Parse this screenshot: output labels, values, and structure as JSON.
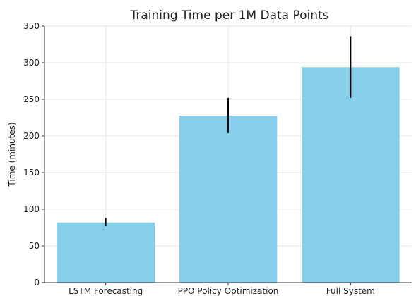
{
  "chart_data": {
    "type": "bar",
    "title": "Training Time per 1M Data Points",
    "xlabel": "",
    "ylabel": "Time (minutes)",
    "categories": [
      "LSTM Forecasting",
      "PPO Policy Optimization",
      "Full System"
    ],
    "values": [
      82,
      228,
      294
    ],
    "error_low": [
      77,
      204,
      252
    ],
    "error_high": [
      88,
      252,
      336
    ],
    "ylim": [
      0,
      350
    ],
    "yticks": [
      0,
      50,
      100,
      150,
      200,
      250,
      300,
      350
    ],
    "grid": true,
    "bar_color": "#87CEEB",
    "error_color": "#000000"
  }
}
